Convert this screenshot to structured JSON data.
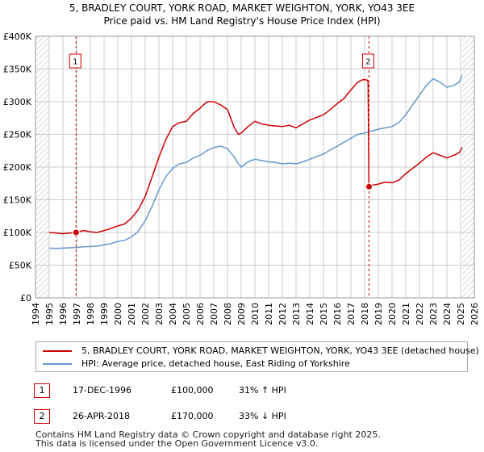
{
  "header": {
    "title_line1": "5, BRADLEY COURT, YORK ROAD, MARKET WEIGHTON, YORK, YO43 3EE",
    "title_line2": "Price paid vs. HM Land Registry's House Price Index (HPI)"
  },
  "legend": {
    "property_label": "5, BRADLEY COURT, YORK ROAD, MARKET WEIGHTON, YORK, YO43 3EE (detached house)",
    "hpi_label": "HPI: Average price, detached house, East Riding of Yorkshire"
  },
  "sales": [
    {
      "num": "1",
      "date": "17-DEC-1996",
      "price": "£100,000",
      "hpi": "31% ↑ HPI"
    },
    {
      "num": "2",
      "date": "26-APR-2018",
      "price": "£170,000",
      "hpi": "33% ↓ HPI"
    }
  ],
  "footer": {
    "line1": "Contains HM Land Registry data © Crown copyright and database right 2025.",
    "line2": "This data is licensed under the Open Government Licence v3.0."
  },
  "colors": {
    "property": "#cc0000",
    "hpi": "#6699cc",
    "grid": "#cccccc",
    "plot_bg": "#ffffff",
    "hatch": "#dddddd"
  },
  "chart_data": {
    "type": "line",
    "title": "5, BRADLEY COURT, YORK ROAD, MARKET WEIGHTON, YORK, YO43 3EE",
    "subtitle": "Price paid vs. HM Land Registry's House Price Index (HPI)",
    "xlabel": "",
    "ylabel": "",
    "xlim": [
      1994,
      2026
    ],
    "ylim": [
      0,
      400000
    ],
    "y_ticks": [
      {
        "value": 0,
        "label": "£0"
      },
      {
        "value": 50000,
        "label": "£50K"
      },
      {
        "value": 100000,
        "label": "£100K"
      },
      {
        "value": 150000,
        "label": "£150K"
      },
      {
        "value": 200000,
        "label": "£200K"
      },
      {
        "value": 250000,
        "label": "£250K"
      },
      {
        "value": 300000,
        "label": "£300K"
      },
      {
        "value": 350000,
        "label": "£350K"
      },
      {
        "value": 400000,
        "label": "£400K"
      }
    ],
    "x_ticks": [
      "1994",
      "1995",
      "1996",
      "1997",
      "1998",
      "1999",
      "2000",
      "2001",
      "2002",
      "2003",
      "2004",
      "2005",
      "2006",
      "2007",
      "2008",
      "2009",
      "2010",
      "2011",
      "2012",
      "2013",
      "2014",
      "2015",
      "2016",
      "2017",
      "2018",
      "2019",
      "2020",
      "2021",
      "2022",
      "2023",
      "2024",
      "2025",
      "2026"
    ],
    "grid": true,
    "legend_position": "bottom",
    "data_range": [
      1995.0,
      2025.1
    ],
    "series": [
      {
        "name": "5, BRADLEY COURT, YORK ROAD, MARKET WEIGHTON, YORK, YO43 3EE (detached house)",
        "x": [
          1995.0,
          1995.5,
          1996.0,
          1996.5,
          1996.96,
          1997.5,
          1998.0,
          1998.5,
          1999.0,
          1999.5,
          2000.0,
          2000.5,
          2001.0,
          2001.5,
          2002.0,
          2002.5,
          2003.0,
          2003.5,
          2004.0,
          2004.5,
          2005.0,
          2005.5,
          2006.0,
          2006.5,
          2007.0,
          2007.5,
          2008.0,
          2008.5,
          2008.8,
          2009.0,
          2009.5,
          2010.0,
          2010.5,
          2011.0,
          2011.5,
          2012.0,
          2012.5,
          2013.0,
          2013.5,
          2014.0,
          2014.5,
          2015.0,
          2015.5,
          2016.0,
          2016.5,
          2017.0,
          2017.5,
          2017.9,
          2018.2,
          2018.25,
          2018.32,
          2018.5,
          2019.0,
          2019.5,
          2020.0,
          2020.5,
          2021.0,
          2021.5,
          2022.0,
          2022.5,
          2023.0,
          2023.5,
          2024.0,
          2024.5,
          2024.9,
          2025.1
        ],
        "values": [
          100000,
          99000,
          98000,
          99000,
          100000,
          103000,
          101000,
          100000,
          103000,
          106000,
          110000,
          113000,
          122000,
          135000,
          155000,
          185000,
          215000,
          242000,
          262000,
          268000,
          270000,
          282000,
          290000,
          300000,
          300000,
          295000,
          288000,
          260000,
          250000,
          252000,
          262000,
          270000,
          266000,
          264000,
          263000,
          262000,
          264000,
          260000,
          266000,
          272000,
          276000,
          280000,
          288000,
          297000,
          305000,
          318000,
          330000,
          334000,
          333000,
          330000,
          170000,
          172000,
          174000,
          177000,
          176000,
          180000,
          190000,
          198000,
          206000,
          215000,
          222000,
          218000,
          214000,
          218000,
          222000,
          230000
        ]
      },
      {
        "name": "HPI: Average price, detached house, East Riding of Yorkshire",
        "x": [
          1995.0,
          1995.5,
          1996.0,
          1996.5,
          1997.0,
          1997.5,
          1998.0,
          1998.5,
          1999.0,
          1999.5,
          2000.0,
          2000.5,
          2001.0,
          2001.5,
          2002.0,
          2002.5,
          2003.0,
          2003.5,
          2004.0,
          2004.5,
          2005.0,
          2005.5,
          2006.0,
          2006.5,
          2007.0,
          2007.5,
          2008.0,
          2008.5,
          2008.8,
          2009.0,
          2009.5,
          2010.0,
          2010.5,
          2011.0,
          2011.5,
          2012.0,
          2012.5,
          2013.0,
          2013.5,
          2014.0,
          2014.5,
          2015.0,
          2015.5,
          2016.0,
          2016.5,
          2017.0,
          2017.5,
          2018.0,
          2018.5,
          2019.0,
          2019.5,
          2020.0,
          2020.5,
          2021.0,
          2021.5,
          2022.0,
          2022.5,
          2023.0,
          2023.5,
          2024.0,
          2024.5,
          2024.9,
          2025.1
        ],
        "values": [
          76000,
          75500,
          76000,
          76500,
          77000,
          78000,
          78500,
          79000,
          81000,
          83000,
          86000,
          88000,
          93000,
          102000,
          118000,
          140000,
          165000,
          185000,
          198000,
          205000,
          207000,
          214000,
          218000,
          225000,
          230000,
          232000,
          228000,
          215000,
          205000,
          200000,
          208000,
          212000,
          210000,
          208000,
          207000,
          205000,
          206000,
          205000,
          208000,
          212000,
          216000,
          220000,
          226000,
          232000,
          238000,
          244000,
          250000,
          252000,
          255000,
          258000,
          260000,
          262000,
          268000,
          280000,
          295000,
          310000,
          325000,
          335000,
          330000,
          322000,
          325000,
          330000,
          340000
        ]
      }
    ],
    "markers": [
      {
        "label": "1",
        "x": 1996.96,
        "value": 100000
      },
      {
        "label": "2",
        "x": 2018.32,
        "value": 170000
      }
    ]
  }
}
